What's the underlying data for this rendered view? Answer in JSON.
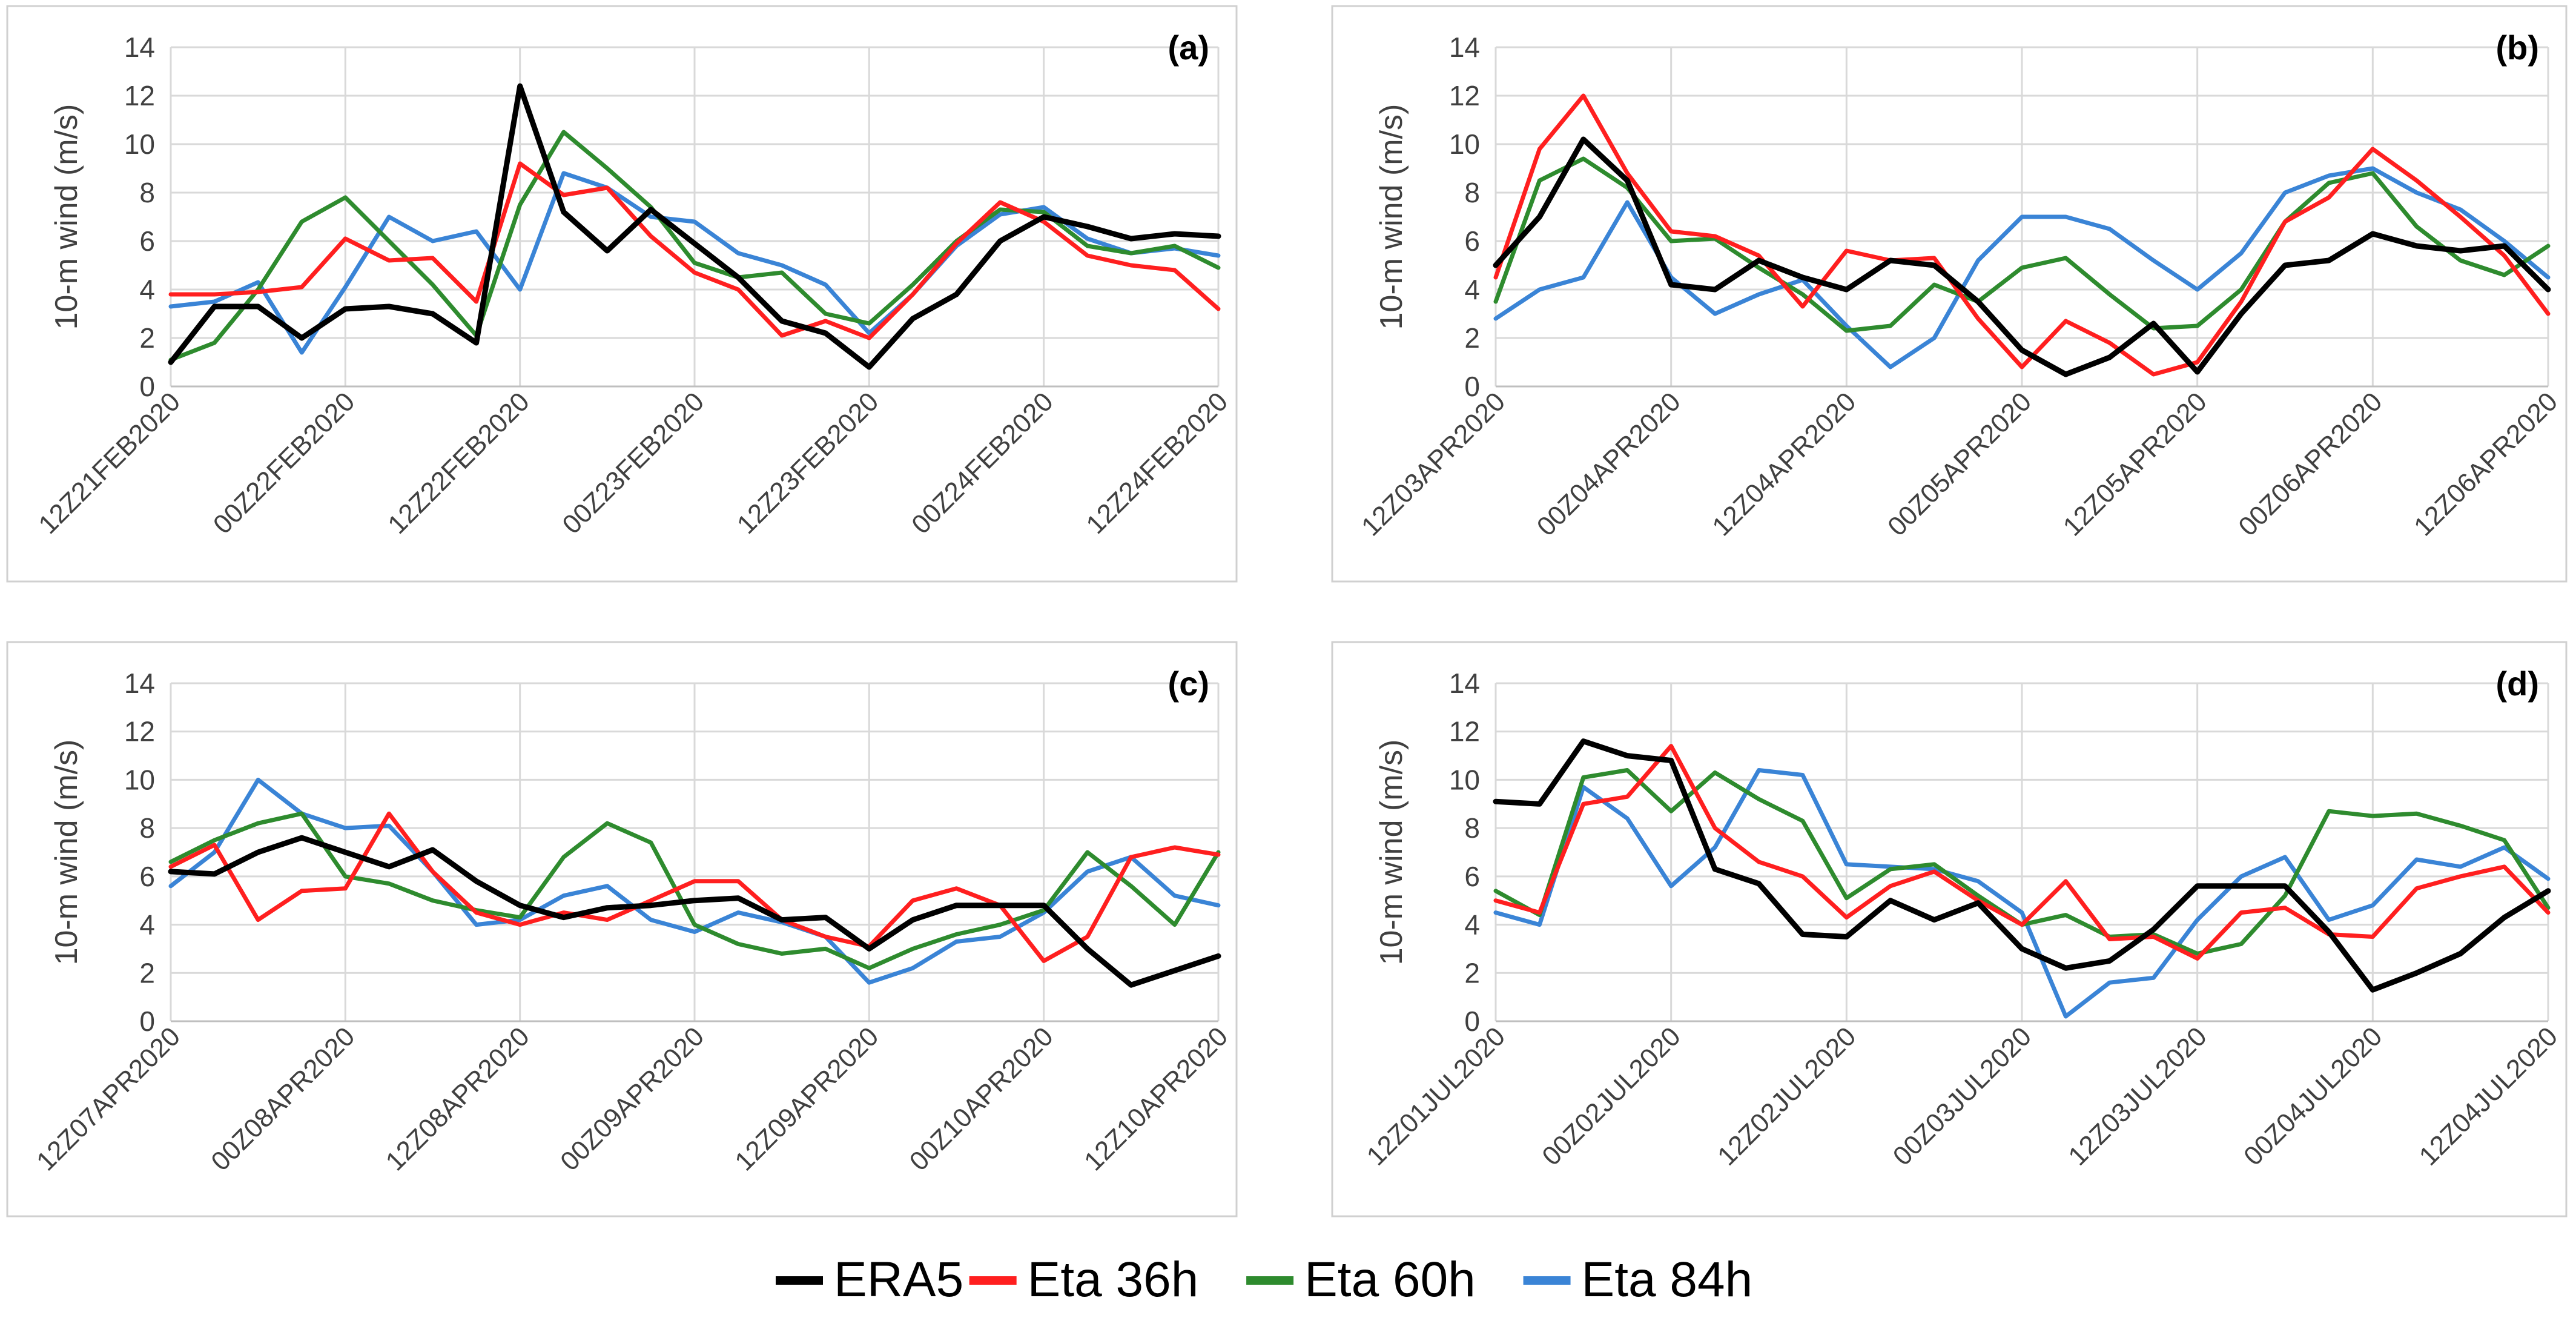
{
  "colors": {
    "ERA5": "#000000",
    "Eta 36h": "#ff1f1f",
    "Eta 60h": "#2e8b2e",
    "Eta 84h": "#3a84d6",
    "grid": "#d9d9d9",
    "panel_border": "#d0d0d0",
    "text": "#404040"
  },
  "legend": {
    "position": "bottom-center",
    "entries": [
      "ERA5",
      "Eta 36h",
      "Eta 60h",
      "Eta 84h"
    ]
  },
  "chart_data": [
    {
      "type": "line",
      "panel_label": "(a)",
      "ylabel": "10-m wind (m/s)",
      "ylim": [
        0,
        14
      ],
      "yticks": [
        0,
        2,
        4,
        6,
        8,
        10,
        12,
        14
      ],
      "grid": true,
      "x": [
        0,
        0.25,
        0.5,
        0.75,
        1,
        1.25,
        1.5,
        1.75,
        2,
        2.25,
        2.5,
        2.75,
        3,
        3.25,
        3.5,
        3.75,
        4,
        4.25,
        4.5,
        4.75,
        5,
        5.25,
        5.5,
        5.75,
        6
      ],
      "xticks": [
        0,
        1,
        2,
        3,
        4,
        5,
        6
      ],
      "xticklabels": [
        "12Z21FEB2020",
        "00Z22FEB2020",
        "12Z22FEB2020",
        "00Z23FEB2020",
        "12Z23FEB2020",
        "00Z24FEB2020",
        "12Z24FEB2020"
      ],
      "series": [
        {
          "name": "ERA5",
          "values": [
            1.0,
            3.3,
            3.3,
            2.0,
            3.2,
            3.3,
            3.0,
            1.8,
            12.4,
            7.2,
            5.6,
            7.3,
            5.9,
            4.5,
            2.7,
            2.2,
            0.8,
            2.8,
            3.8,
            6.0,
            7.0,
            6.6,
            6.1,
            6.3,
            6.2
          ]
        },
        {
          "name": "Eta 36h",
          "values": [
            3.8,
            3.8,
            3.9,
            4.1,
            6.1,
            5.2,
            5.3,
            3.5,
            9.2,
            7.9,
            8.2,
            6.2,
            4.7,
            4.0,
            2.1,
            2.7,
            2.0,
            3.8,
            5.9,
            7.6,
            6.8,
            5.4,
            5.0,
            4.8,
            3.2
          ]
        },
        {
          "name": "Eta 60h",
          "values": [
            1.1,
            1.8,
            4.0,
            6.8,
            7.8,
            6.0,
            4.2,
            2.1,
            7.5,
            10.5,
            9.0,
            7.4,
            5.1,
            4.5,
            4.7,
            3.0,
            2.6,
            4.2,
            6.0,
            7.3,
            7.2,
            5.8,
            5.5,
            5.8,
            4.9
          ]
        },
        {
          "name": "Eta 84h",
          "values": [
            3.3,
            3.5,
            4.3,
            1.4,
            4.1,
            7.0,
            6.0,
            6.4,
            4.0,
            8.8,
            8.2,
            7.0,
            6.8,
            5.5,
            5.0,
            4.2,
            2.2,
            3.8,
            5.8,
            7.1,
            7.4,
            6.1,
            5.5,
            5.7,
            5.4
          ]
        }
      ]
    },
    {
      "type": "line",
      "panel_label": "(b)",
      "ylabel": "10-m wind (m/s)",
      "ylim": [
        0,
        14
      ],
      "yticks": [
        0,
        2,
        4,
        6,
        8,
        10,
        12,
        14
      ],
      "grid": true,
      "x": [
        0,
        0.25,
        0.5,
        0.75,
        1,
        1.25,
        1.5,
        1.75,
        2,
        2.25,
        2.5,
        2.75,
        3,
        3.25,
        3.5,
        3.75,
        4,
        4.25,
        4.5,
        4.75,
        5,
        5.25,
        5.5,
        5.75,
        6
      ],
      "xticks": [
        0,
        1,
        2,
        3,
        4,
        5,
        6
      ],
      "xticklabels": [
        "12Z03APR2020",
        "00Z04APR2020",
        "12Z04APR2020",
        "00Z05APR2020",
        "12Z05APR2020",
        "00Z06APR2020",
        "12Z06APR2020"
      ],
      "series": [
        {
          "name": "ERA5",
          "values": [
            5.0,
            7.0,
            10.2,
            8.5,
            4.2,
            4.0,
            5.2,
            4.5,
            4.0,
            5.2,
            5.0,
            3.5,
            1.5,
            0.5,
            1.2,
            2.6,
            0.6,
            3.0,
            5.0,
            5.2,
            6.3,
            5.8,
            5.6,
            5.8,
            4.0
          ]
        },
        {
          "name": "Eta 36h",
          "values": [
            4.5,
            9.8,
            12.0,
            8.8,
            6.4,
            6.2,
            5.4,
            3.3,
            5.6,
            5.2,
            5.3,
            2.8,
            0.8,
            2.7,
            1.8,
            0.5,
            1.0,
            3.5,
            6.8,
            7.8,
            9.8,
            8.5,
            7.0,
            5.4,
            3.0
          ]
        },
        {
          "name": "Eta 60h",
          "values": [
            3.5,
            8.5,
            9.4,
            8.2,
            6.0,
            6.1,
            4.9,
            3.8,
            2.3,
            2.5,
            4.2,
            3.5,
            4.9,
            5.3,
            3.8,
            2.4,
            2.5,
            4.0,
            6.8,
            8.4,
            8.8,
            6.6,
            5.2,
            4.6,
            5.8
          ]
        },
        {
          "name": "Eta 84h",
          "values": [
            2.8,
            4.0,
            4.5,
            7.6,
            4.5,
            3.0,
            3.8,
            4.4,
            2.5,
            0.8,
            2.0,
            5.2,
            7.0,
            7.0,
            6.5,
            5.2,
            4.0,
            5.5,
            8.0,
            8.7,
            9.0,
            8.0,
            7.3,
            6.0,
            4.5
          ]
        }
      ]
    },
    {
      "type": "line",
      "panel_label": "(c)",
      "ylabel": "10-m wind (m/s)",
      "ylim": [
        0,
        14
      ],
      "yticks": [
        0,
        2,
        4,
        6,
        8,
        10,
        12,
        14
      ],
      "grid": true,
      "x": [
        0,
        0.25,
        0.5,
        0.75,
        1,
        1.25,
        1.5,
        1.75,
        2,
        2.25,
        2.5,
        2.75,
        3,
        3.25,
        3.5,
        3.75,
        4,
        4.25,
        4.5,
        4.75,
        5,
        5.25,
        5.5,
        5.75,
        6
      ],
      "xticks": [
        0,
        1,
        2,
        3,
        4,
        5,
        6
      ],
      "xticklabels": [
        "12Z07APR2020",
        "00Z08APR2020",
        "12Z08APR2020",
        "00Z09APR2020",
        "12Z09APR2020",
        "00Z10APR2020",
        "12Z10APR2020"
      ],
      "series": [
        {
          "name": "ERA5",
          "values": [
            6.2,
            6.1,
            7.0,
            7.6,
            7.0,
            6.4,
            7.1,
            5.8,
            4.8,
            4.3,
            4.7,
            4.8,
            5.0,
            5.1,
            4.2,
            4.3,
            3.0,
            4.2,
            4.8,
            4.8,
            4.8,
            3.0,
            1.5,
            2.1,
            2.7
          ]
        },
        {
          "name": "Eta 36h",
          "values": [
            6.4,
            7.3,
            4.2,
            5.4,
            5.5,
            8.6,
            6.2,
            4.5,
            4.0,
            4.5,
            4.2,
            5.0,
            5.8,
            5.8,
            4.2,
            3.5,
            3.1,
            5.0,
            5.5,
            4.8,
            2.5,
            3.5,
            6.8,
            7.2,
            6.9
          ]
        },
        {
          "name": "Eta 60h",
          "values": [
            6.6,
            7.5,
            8.2,
            8.6,
            6.0,
            5.7,
            5.0,
            4.6,
            4.3,
            6.8,
            8.2,
            7.4,
            4.0,
            3.2,
            2.8,
            3.0,
            2.2,
            3.0,
            3.6,
            4.0,
            4.6,
            7.0,
            5.6,
            4.0,
            7.0
          ]
        },
        {
          "name": "Eta 84h",
          "values": [
            5.6,
            7.0,
            10.0,
            8.6,
            8.0,
            8.1,
            6.2,
            4.0,
            4.2,
            5.2,
            5.6,
            4.2,
            3.7,
            4.5,
            4.1,
            3.5,
            1.6,
            2.2,
            3.3,
            3.5,
            4.5,
            6.2,
            6.8,
            5.2,
            4.8
          ]
        }
      ]
    },
    {
      "type": "line",
      "panel_label": "(d)",
      "ylabel": "10-m wind (m/s)",
      "ylim": [
        0,
        14
      ],
      "yticks": [
        0,
        2,
        4,
        6,
        8,
        10,
        12,
        14
      ],
      "grid": true,
      "x": [
        0,
        0.25,
        0.5,
        0.75,
        1,
        1.25,
        1.5,
        1.75,
        2,
        2.25,
        2.5,
        2.75,
        3,
        3.25,
        3.5,
        3.75,
        4,
        4.25,
        4.5,
        4.75,
        5,
        5.25,
        5.5,
        5.75,
        6
      ],
      "xticks": [
        0,
        1,
        2,
        3,
        4,
        5,
        6
      ],
      "xticklabels": [
        "12Z01JUL2020",
        "00Z02JUL2020",
        "12Z02JUL2020",
        "00Z03JUL2020",
        "12Z03JUL2020",
        "00Z04JUL2020",
        "12Z04JUL2020"
      ],
      "series": [
        {
          "name": "ERA5",
          "values": [
            9.1,
            9.0,
            11.6,
            11.0,
            10.8,
            6.3,
            5.7,
            3.6,
            3.5,
            5.0,
            4.2,
            4.9,
            3.0,
            2.2,
            2.5,
            3.8,
            5.6,
            5.6,
            5.6,
            3.7,
            1.3,
            2.0,
            2.8,
            4.3,
            5.4
          ]
        },
        {
          "name": "Eta 36h",
          "values": [
            5.0,
            4.5,
            9.0,
            9.3,
            11.4,
            8.0,
            6.6,
            6.0,
            4.3,
            5.6,
            6.2,
            5.0,
            4.0,
            5.8,
            3.4,
            3.5,
            2.6,
            4.5,
            4.7,
            3.6,
            3.5,
            5.5,
            6.0,
            6.4,
            4.5
          ]
        },
        {
          "name": "Eta 60h",
          "values": [
            5.4,
            4.4,
            10.1,
            10.4,
            8.7,
            10.3,
            9.2,
            8.3,
            5.1,
            6.3,
            6.5,
            5.2,
            4.0,
            4.4,
            3.5,
            3.6,
            2.8,
            3.2,
            5.2,
            8.7,
            8.5,
            8.6,
            8.1,
            7.5,
            4.7
          ]
        },
        {
          "name": "Eta 84h",
          "values": [
            4.5,
            4.0,
            9.7,
            8.4,
            5.6,
            7.2,
            10.4,
            10.2,
            6.5,
            6.4,
            6.3,
            5.8,
            4.5,
            0.2,
            1.6,
            1.8,
            4.2,
            6.0,
            6.8,
            4.2,
            4.8,
            6.7,
            6.4,
            7.2,
            5.9
          ]
        }
      ]
    }
  ]
}
